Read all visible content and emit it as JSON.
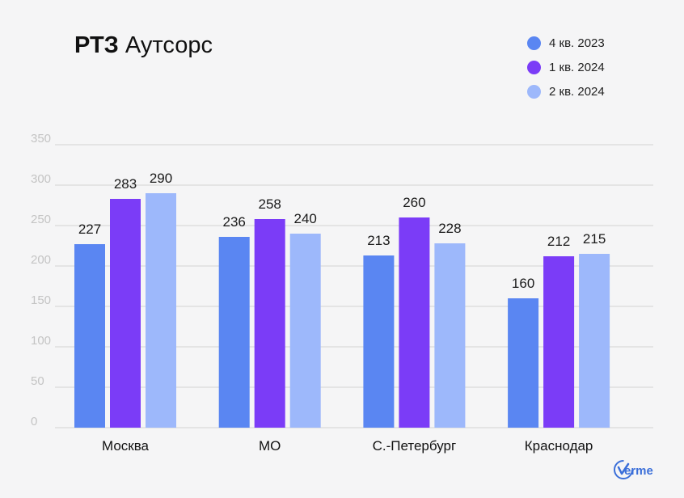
{
  "title": {
    "bold": "РТЗ",
    "regular": "Аутсорс"
  },
  "colors": {
    "series_1": "#5a86f2",
    "series_2": "#7b3cf7",
    "series_3": "#9db8fb",
    "grid": "#d2d2d2",
    "axis_text": "#c4c4c4",
    "background": "#f5f5f6"
  },
  "logo": {
    "text": "erme"
  },
  "chart_data": {
    "type": "bar",
    "categories": [
      "Москва",
      "МО",
      "С.-Петербург",
      "Краснодар"
    ],
    "series": [
      {
        "name": "4 кв. 2023",
        "values": [
          227,
          236,
          213,
          160
        ]
      },
      {
        "name": "1 кв. 2024",
        "values": [
          283,
          258,
          260,
          212
        ]
      },
      {
        "name": "2 кв. 2024",
        "values": [
          290,
          240,
          228,
          215
        ]
      }
    ],
    "yticks": [
      "0",
      "50",
      "100",
      "150",
      "200",
      "250",
      "300",
      "350"
    ],
    "ylim": [
      0,
      350
    ],
    "grid": true,
    "legend_position": "top-right",
    "data_labels": true
  }
}
